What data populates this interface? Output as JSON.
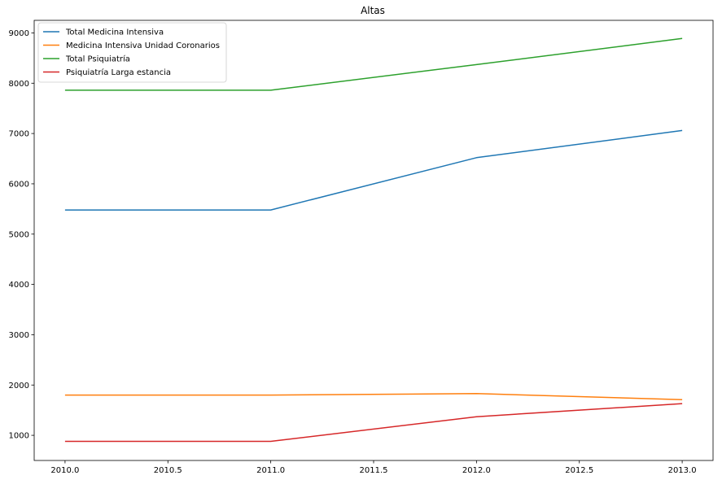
{
  "chart_data": {
    "type": "line",
    "title": "Altas",
    "xlabel": "",
    "ylabel": "",
    "x": [
      2010.0,
      2011.0,
      2012.0,
      2013.0
    ],
    "xlim": [
      2009.85,
      2013.15
    ],
    "ylim": [
      500,
      9250
    ],
    "xticks": [
      2010.0,
      2010.5,
      2011.0,
      2011.5,
      2012.0,
      2012.5,
      2013.0
    ],
    "xtick_labels": [
      "2010.0",
      "2010.5",
      "2011.0",
      "2011.5",
      "2012.0",
      "2012.5",
      "2013.0"
    ],
    "yticks": [
      1000,
      2000,
      3000,
      4000,
      5000,
      6000,
      7000,
      8000,
      9000
    ],
    "ytick_labels": [
      "1000",
      "2000",
      "3000",
      "4000",
      "5000",
      "6000",
      "7000",
      "8000",
      "9000"
    ],
    "grid": false,
    "legend_position": "top-left",
    "series": [
      {
        "name": "Total Medicina Intensiva",
        "color": "#1f77b4",
        "values": [
          5480,
          5480,
          6520,
          7060
        ]
      },
      {
        "name": "Medicina Intensiva Unidad  Coronarios",
        "color": "#ff7f0e",
        "values": [
          1800,
          1800,
          1830,
          1710
        ]
      },
      {
        "name": "Total Psiquiatría",
        "color": "#2ca02c",
        "values": [
          7860,
          7860,
          8370,
          8890
        ]
      },
      {
        "name": "Psiquiatría Larga estancia",
        "color": "#d62728",
        "values": [
          880,
          880,
          1370,
          1630
        ]
      }
    ]
  }
}
